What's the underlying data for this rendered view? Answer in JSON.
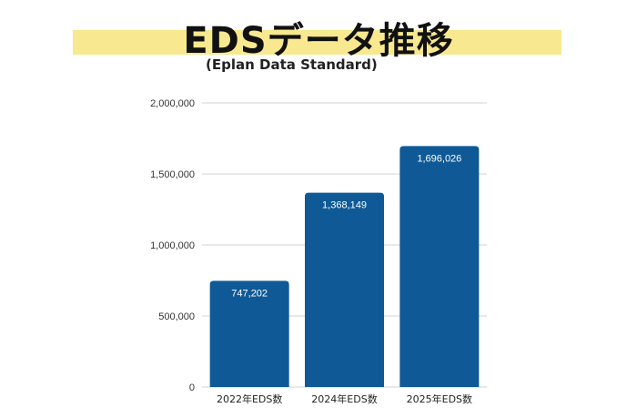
{
  "header": {
    "title": "EDSデータ推移",
    "subtitle": "(Eplan Data Standard)"
  },
  "colors": {
    "bar": "#0f5a96",
    "highlight": "#f8e88f",
    "grid": "#d3d3d3"
  },
  "chart_data": {
    "type": "bar",
    "title": "EDSデータ推移",
    "subtitle": "(Eplan Data Standard)",
    "categories": [
      "2022年EDS数",
      "2024年EDS数",
      "2025年EDS数"
    ],
    "values": [
      747202,
      1368149,
      1696026
    ],
    "data_labels": [
      "747,202",
      "1,368,149",
      "1,696,026"
    ],
    "yticks": [
      {
        "value": 0,
        "label": "0"
      },
      {
        "value": 500000,
        "label": "500,000"
      },
      {
        "value": 1000000,
        "label": "1,000,000"
      },
      {
        "value": 1500000,
        "label": "1,500,000"
      },
      {
        "value": 2000000,
        "label": "2,000,000"
      }
    ],
    "ylim": [
      0,
      2000000
    ],
    "xlabel": "",
    "ylabel": "",
    "grid": true,
    "legend": "none"
  }
}
